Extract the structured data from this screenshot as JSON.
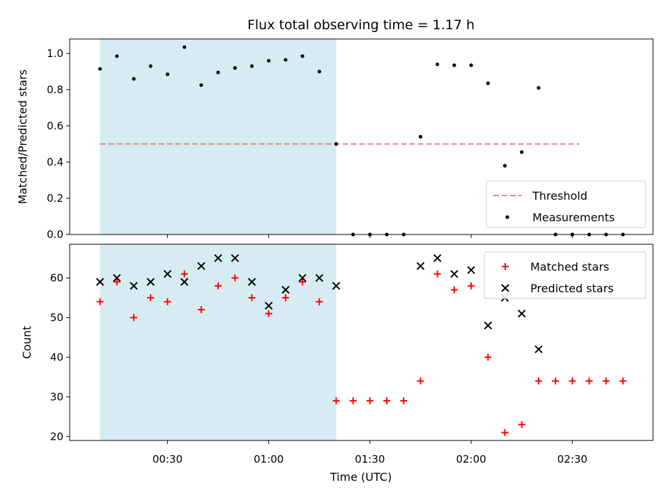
{
  "figure": {
    "title": "Flux total observing time = 1.17 h",
    "xlabel": "Time (UTC)",
    "x_ticks": [
      "00:30",
      "01:00",
      "01:30",
      "02:00",
      "02:30"
    ]
  },
  "colors": {
    "threshold": "#f08080",
    "measurement": "#000000",
    "matched": "#ff0000",
    "predicted": "#000000",
    "observing_span": "#add8e6"
  },
  "chart_data": [
    {
      "type": "scatter",
      "panel": "top",
      "title": "Flux total observing time = 1.17 h",
      "xlabel": "",
      "ylabel": "Matched/Predicted stars",
      "ylim": [
        0,
        1.08
      ],
      "y_ticks": [
        "0.0",
        "0.2",
        "0.4",
        "0.6",
        "0.8",
        "1.0"
      ],
      "x_unit": "minutes after 00:00 UTC",
      "shaded_span": [
        10,
        80
      ],
      "legend": {
        "placement": "lower-right",
        "entries": [
          "Threshold",
          "Measurements"
        ]
      },
      "series": [
        {
          "name": "Threshold",
          "style": "dashed-line",
          "x": [
            10,
            152
          ],
          "y": [
            0.5,
            0.5
          ]
        },
        {
          "name": "Measurements",
          "style": "dot",
          "x": [
            10,
            15,
            20,
            25,
            30,
            35,
            40,
            45,
            50,
            55,
            60,
            65,
            70,
            75,
            80,
            85,
            90,
            95,
            100,
            105,
            110,
            115,
            120,
            125,
            130,
            135,
            140,
            145,
            150,
            155,
            160,
            165
          ],
          "y": [
            0.915,
            0.985,
            0.86,
            0.93,
            0.885,
            1.035,
            0.825,
            0.895,
            0.92,
            0.93,
            0.96,
            0.965,
            0.985,
            0.9,
            0.5,
            0.0,
            0.0,
            0.0,
            0.0,
            0.54,
            0.94,
            0.935,
            0.935,
            0.835,
            0.38,
            0.455,
            0.81,
            0.0,
            0.0,
            0.0,
            0.0,
            0.0
          ]
        }
      ]
    },
    {
      "type": "scatter",
      "panel": "bottom",
      "xlabel": "Time (UTC)",
      "ylabel": "Count",
      "ylim": [
        19,
        68.5
      ],
      "y_ticks": [
        "20",
        "30",
        "40",
        "50",
        "60"
      ],
      "shaded_span": [
        10,
        80
      ],
      "legend": {
        "placement": "upper-right",
        "entries": [
          "Matched stars",
          "Predicted stars"
        ]
      },
      "series": [
        {
          "name": "Matched stars",
          "marker": "plus",
          "x": [
            10,
            15,
            20,
            25,
            30,
            35,
            40,
            45,
            50,
            55,
            60,
            65,
            70,
            75,
            80,
            85,
            90,
            95,
            100,
            105,
            110,
            115,
            120,
            125,
            130,
            135,
            140,
            145,
            150,
            155,
            160,
            165
          ],
          "y": [
            54,
            59,
            50,
            55,
            54,
            61,
            52,
            58,
            60,
            55,
            51,
            55,
            59,
            54,
            29,
            29,
            29,
            29,
            29,
            34,
            61,
            57,
            58,
            40,
            21,
            23,
            34,
            34,
            34,
            34,
            34,
            34
          ]
        },
        {
          "name": "Predicted stars",
          "marker": "x",
          "x": [
            10,
            15,
            20,
            25,
            30,
            35,
            40,
            45,
            50,
            55,
            60,
            65,
            70,
            75,
            80,
            105,
            110,
            115,
            120,
            125,
            130,
            135,
            140
          ],
          "y": [
            59,
            60,
            58,
            59,
            61,
            59,
            63,
            65,
            65,
            59,
            53,
            57,
            60,
            60,
            58,
            63,
            65,
            61,
            62,
            48,
            55,
            51,
            42
          ]
        }
      ]
    }
  ]
}
